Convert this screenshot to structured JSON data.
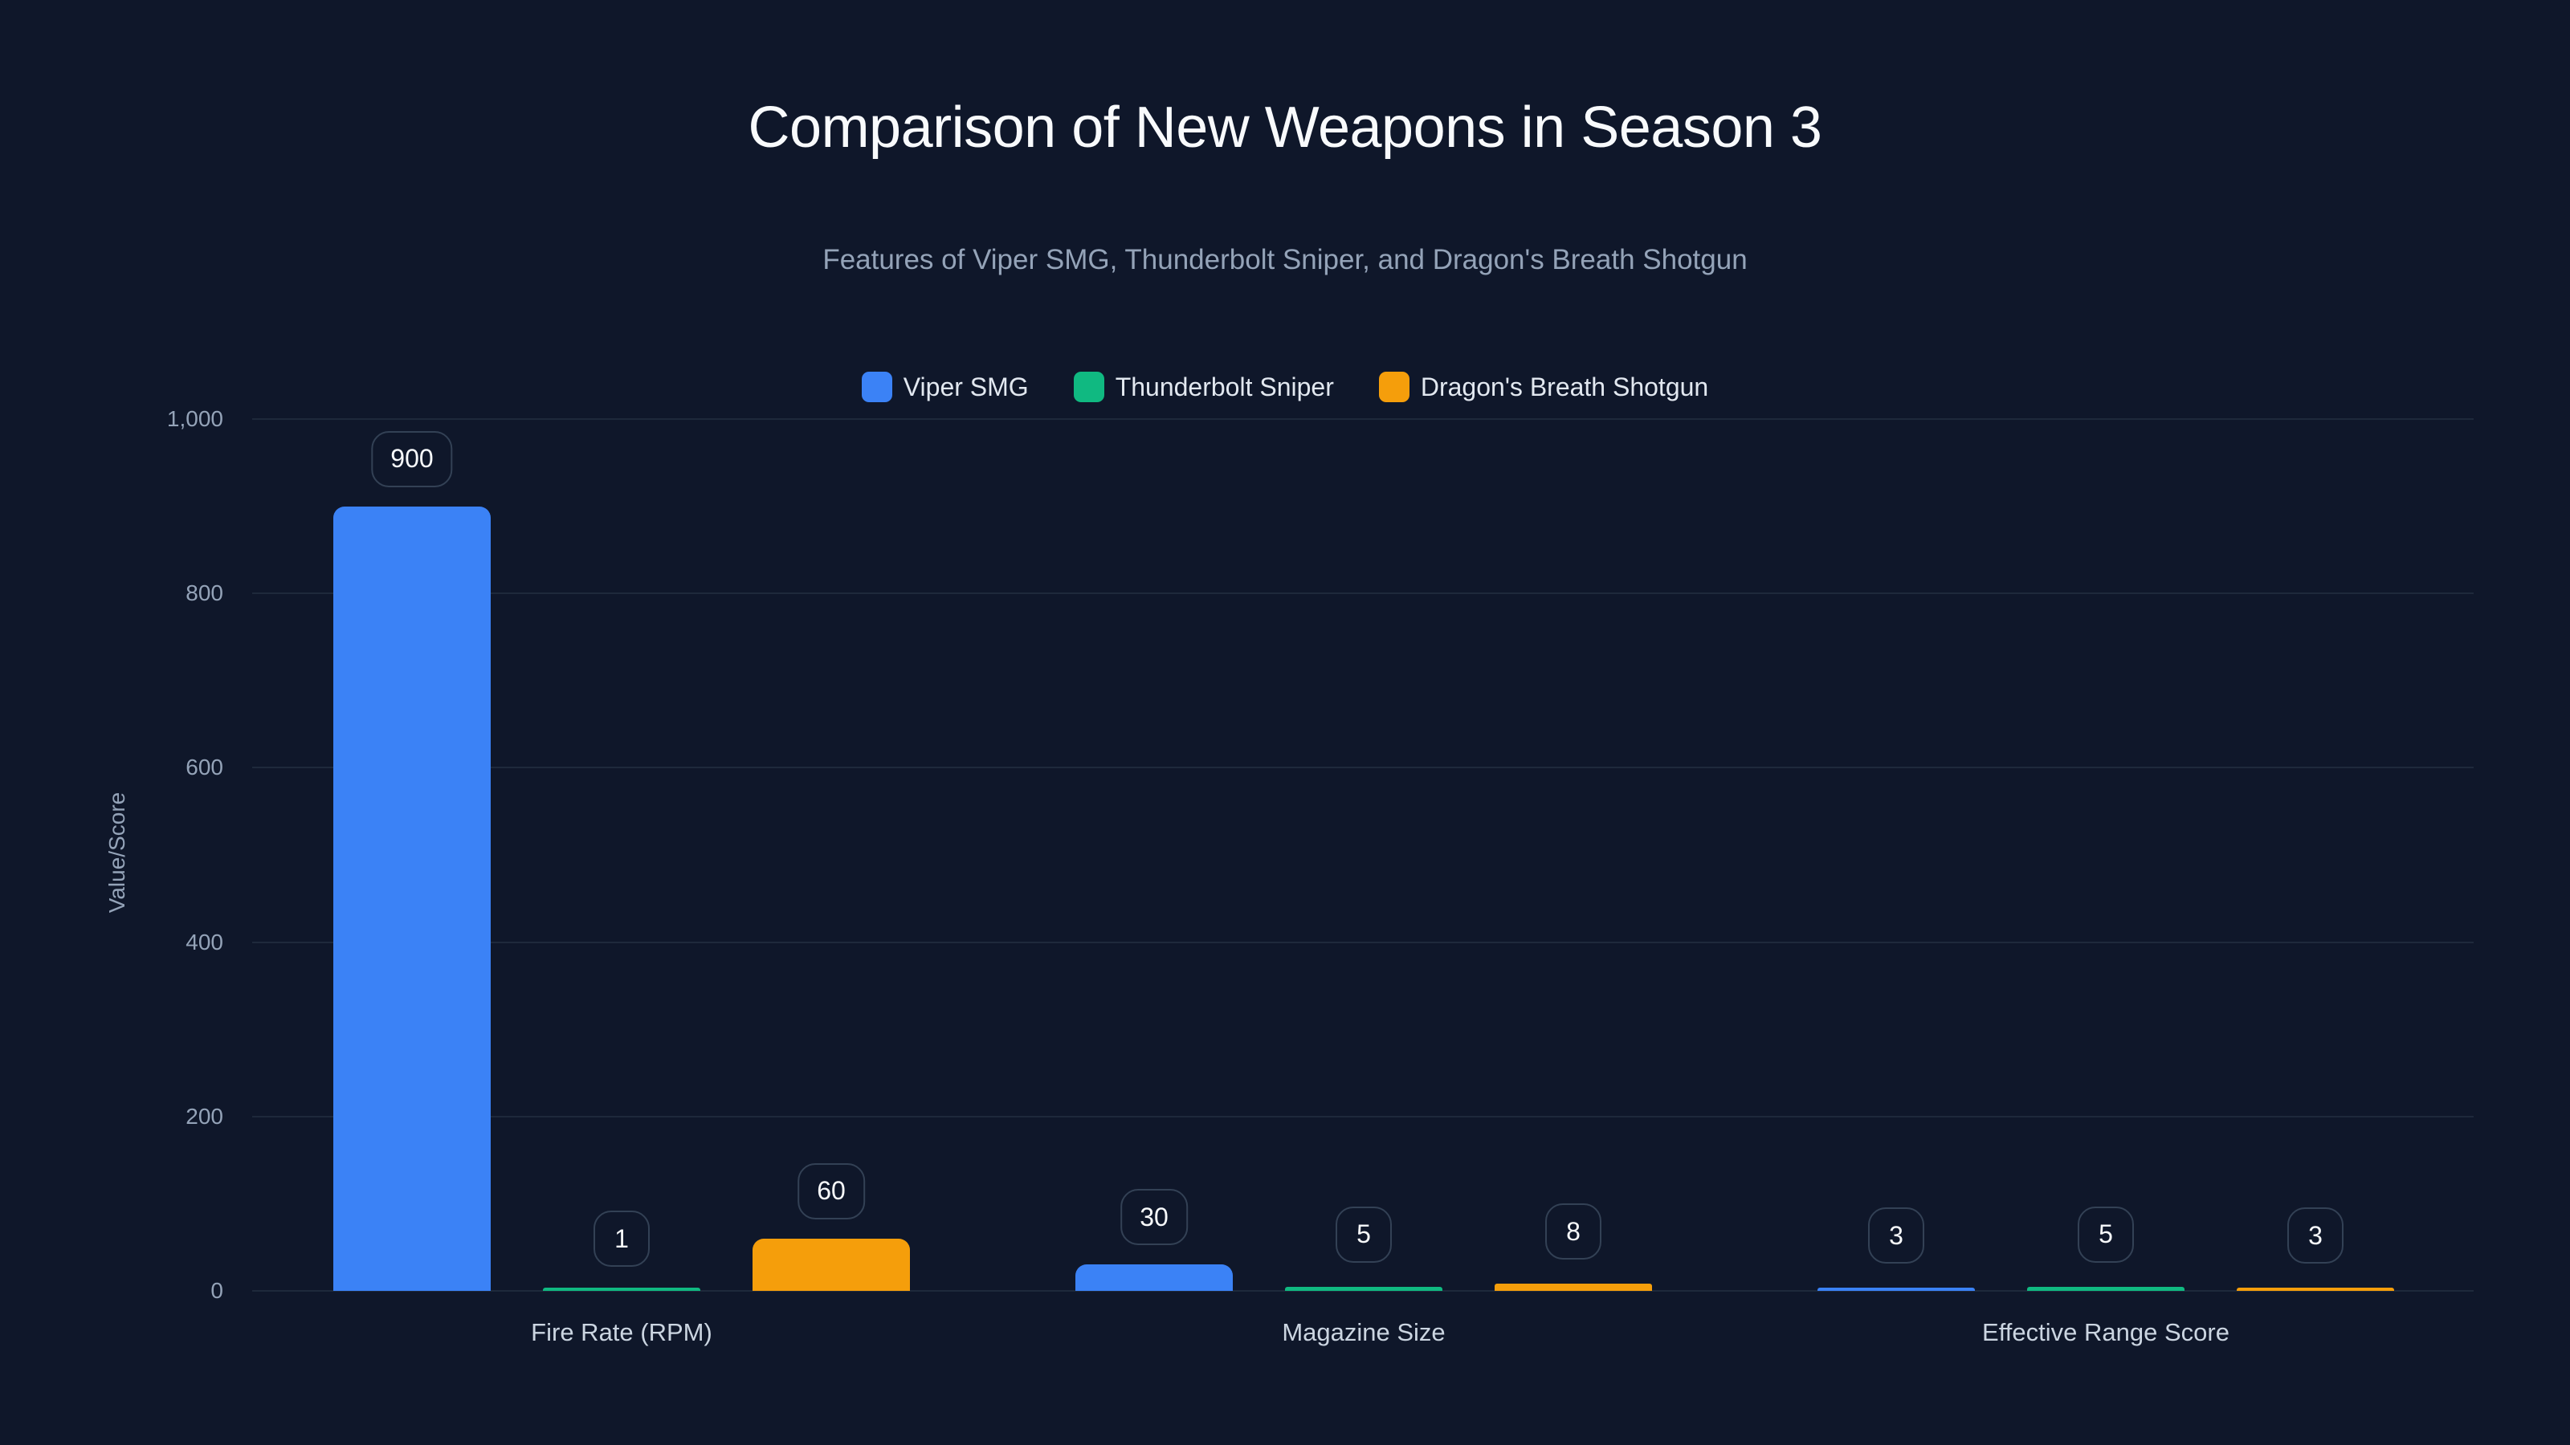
{
  "chart_data": {
    "type": "bar",
    "title": "Comparison of New Weapons in Season 3",
    "subtitle": "Features of Viper SMG, Thunderbolt Sniper, and Dragon's Breath Shotgun",
    "xlabel": "",
    "ylabel": "Value/Score",
    "ylim": [
      0,
      1000
    ],
    "yticks": [
      "0",
      "200",
      "400",
      "600",
      "800",
      "1,000"
    ],
    "grid": true,
    "legend_position": "top",
    "categories": [
      "Fire Rate (RPM)",
      "Magazine Size",
      "Effective Range Score"
    ],
    "series": [
      {
        "name": "Viper SMG",
        "color": "#3b82f6",
        "values": [
          900,
          30,
          3
        ]
      },
      {
        "name": "Thunderbolt Sniper",
        "color": "#10b981",
        "values": [
          1,
          5,
          5
        ]
      },
      {
        "name": "Dragon's Breath Shotgun",
        "color": "#f59e0b",
        "values": [
          60,
          8,
          3
        ]
      }
    ]
  },
  "header": {
    "title": "Comparison of New Weapons in Season 3",
    "subtitle": "Features of Viper SMG, Thunderbolt Sniper, and Dragon's Breath Shotgun"
  },
  "legend": [
    {
      "label": "Viper SMG",
      "color": "#3b82f6"
    },
    {
      "label": "Thunderbolt Sniper",
      "color": "#10b981"
    },
    {
      "label": "Dragon's Breath Shotgun",
      "color": "#f59e0b"
    }
  ],
  "axis": {
    "ylabel": "Value/Score",
    "yticks": [
      "0",
      "200",
      "400",
      "600",
      "800",
      "1,000"
    ],
    "xticks": [
      "Fire Rate (RPM)",
      "Magazine Size",
      "Effective Range Score"
    ]
  },
  "colors": {
    "background": "#0f172a",
    "grid": "#1e293b",
    "label_border": "#334155"
  }
}
